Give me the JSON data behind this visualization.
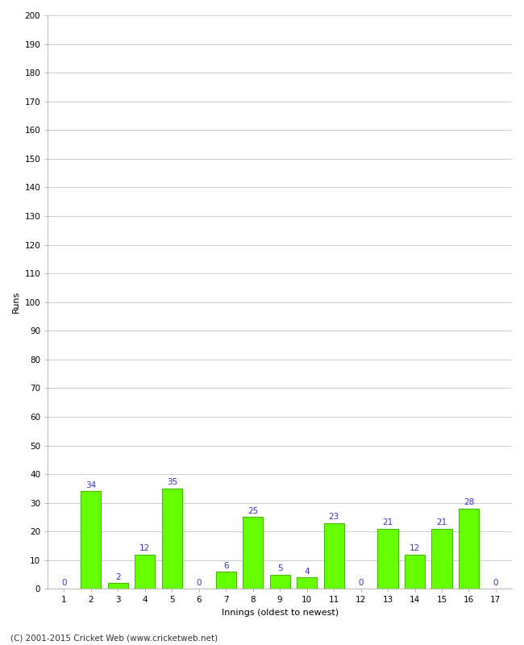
{
  "innings": [
    1,
    2,
    3,
    4,
    5,
    6,
    7,
    8,
    9,
    10,
    11,
    12,
    13,
    14,
    15,
    16,
    17
  ],
  "runs": [
    0,
    34,
    2,
    12,
    35,
    0,
    6,
    25,
    5,
    4,
    23,
    0,
    21,
    12,
    21,
    28,
    0
  ],
  "bar_color": "#66ff00",
  "bar_edge_color": "#44bb00",
  "label_color": "#3333cc",
  "xlabel": "Innings (oldest to newest)",
  "ylabel": "Runs",
  "ylim": [
    0,
    200
  ],
  "ytick_step": 10,
  "background_color": "#ffffff",
  "plot_bg_color": "#ffffff",
  "grid_color": "#cccccc",
  "copyright": "(C) 2001-2015 Cricket Web (www.cricketweb.net)",
  "label_fontsize": 7.5,
  "axis_label_fontsize": 8,
  "tick_fontsize": 7.5,
  "copyright_fontsize": 7.5
}
